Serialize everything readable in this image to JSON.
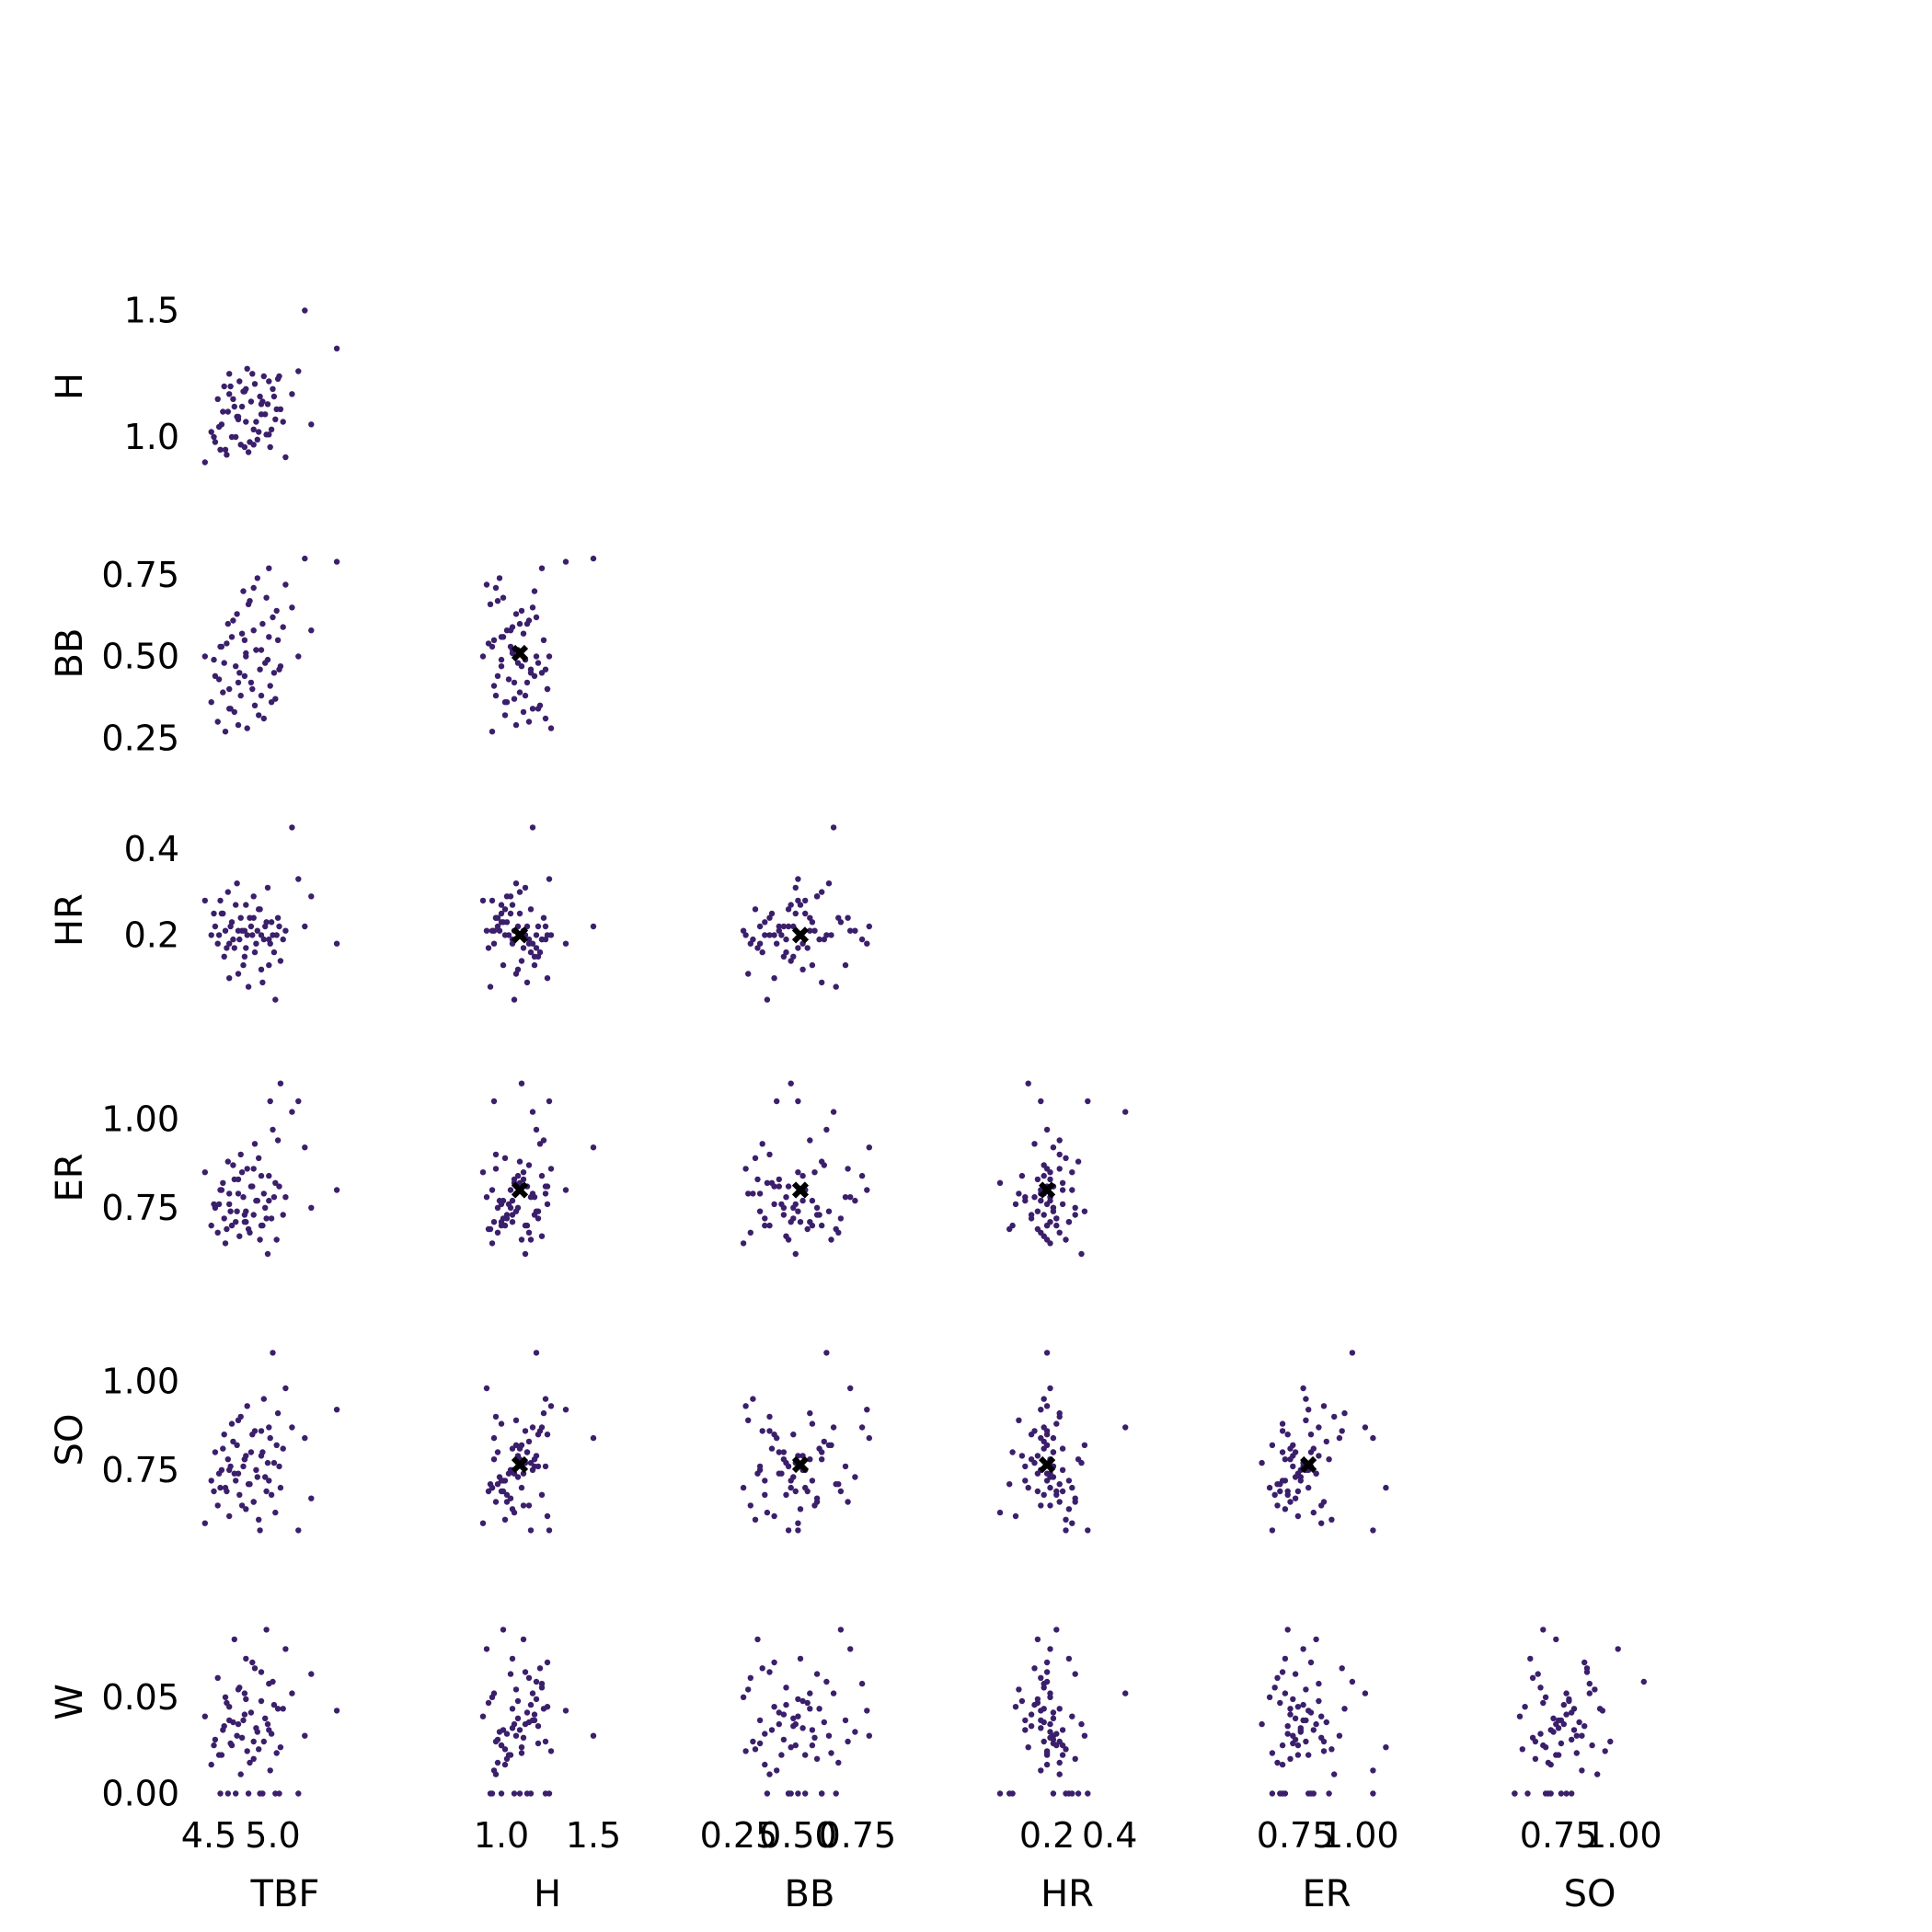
{
  "chart_data": {
    "type": "scatter",
    "subtype": "pairs-lower-triangle",
    "point_color": "#3b1f6b",
    "marker_color": "#000000",
    "grid": false,
    "variables": [
      "TBF",
      "H",
      "BB",
      "HR",
      "ER",
      "SO",
      "W"
    ],
    "axis_ranges": {
      "TBF": [
        4.45,
        5.6
      ],
      "H": [
        0.8,
        1.6
      ],
      "BB": [
        0.2,
        0.82
      ],
      "HR": [
        0.0,
        0.47
      ],
      "ER": [
        0.55,
        1.12
      ],
      "SO": [
        0.55,
        1.12
      ],
      "W": [
        -0.005,
        0.1
      ]
    },
    "ticks": {
      "TBF": [
        "4.5",
        "5.0"
      ],
      "H": [
        "1.0",
        "1.5"
      ],
      "BB": [
        "0.25",
        "0.50",
        "0.75"
      ],
      "HR": [
        "0.2",
        "0.4"
      ],
      "ER": [
        "0.75",
        "1.00"
      ],
      "SO": [
        "0.75",
        "1.00"
      ],
      "W": [
        "0.00",
        "0.05"
      ]
    },
    "reference_point": {
      "H": 1.1,
      "BB": 0.51,
      "HR": 0.2,
      "ER": 0.8,
      "SO": 0.765
    },
    "reference_panels": [
      [
        "H",
        "BB"
      ],
      [
        "H",
        "HR"
      ],
      [
        "BB",
        "HR"
      ],
      [
        "H",
        "ER"
      ],
      [
        "BB",
        "ER"
      ],
      [
        "HR",
        "ER"
      ],
      [
        "H",
        "SO"
      ],
      [
        "BB",
        "SO"
      ],
      [
        "HR",
        "SO"
      ],
      [
        "ER",
        "SO"
      ]
    ],
    "data": {
      "TBF": [
        4.47,
        4.52,
        4.55,
        4.57,
        4.6,
        4.62,
        4.63,
        4.65,
        4.66,
        4.68,
        4.7,
        4.72,
        4.74,
        4.75,
        4.77,
        4.79,
        4.8,
        4.81,
        4.83,
        4.85,
        4.86,
        4.88,
        4.9,
        4.91,
        4.93,
        4.95,
        4.96,
        4.98,
        5.0,
        5.02,
        5.04,
        5.06,
        5.1,
        5.15,
        5.2,
        5.25,
        5.3,
        5.5,
        4.58,
        4.61,
        4.64,
        4.67,
        4.69,
        4.71,
        4.73,
        4.76,
        4.78,
        4.82,
        4.84,
        4.87,
        4.89,
        4.92,
        4.94,
        4.97,
        4.99,
        5.01,
        5.03,
        4.59,
        4.73,
        4.79,
        4.85,
        4.91,
        4.97,
        5.05,
        5.08,
        4.54,
        4.66,
        4.78
      ],
      "H": [
        0.9,
        1.02,
        0.98,
        1.15,
        1.05,
        1.2,
        0.95,
        1.1,
        1.25,
        1.0,
        1.12,
        1.08,
        1.22,
        0.97,
        1.18,
        1.06,
        1.27,
        0.94,
        1.14,
        1.03,
        1.21,
        0.99,
        1.16,
        1.09,
        1.24,
        1.01,
        1.13,
        0.96,
        1.19,
        1.07,
        1.23,
        1.11,
        0.92,
        1.17,
        1.26,
        1.5,
        1.05,
        1.35,
        1.04,
        1.1,
        0.93,
        1.2,
        1.15,
        1.0,
        1.08,
        1.12,
        1.18,
        0.98,
        1.25,
        1.06,
        1.02,
        1.14,
        1.09,
        1.22,
        1.03,
        1.16,
        1.11,
        0.95,
        1.07,
        1.19,
        0.97,
        1.13,
        1.01,
        1.24,
        1.06,
        1.0,
        1.17,
        0.96
      ],
      "BB": [
        0.5,
        0.36,
        0.44,
        0.3,
        0.53,
        0.48,
        0.27,
        0.6,
        0.4,
        0.56,
        0.33,
        0.63,
        0.45,
        0.38,
        0.7,
        0.51,
        0.28,
        0.66,
        0.42,
        0.58,
        0.35,
        0.74,
        0.46,
        0.52,
        0.31,
        0.68,
        0.49,
        0.41,
        0.62,
        0.37,
        0.55,
        0.47,
        0.72,
        0.65,
        0.5,
        0.8,
        0.58,
        0.79,
        0.43,
        0.39,
        0.54,
        0.34,
        0.61,
        0.47,
        0.29,
        0.57,
        0.44,
        0.67,
        0.4,
        0.52,
        0.32,
        0.6,
        0.48,
        0.77,
        0.36,
        0.45,
        0.64,
        0.53,
        0.42,
        0.5,
        0.71,
        0.38,
        0.56,
        0.46,
        0.59,
        0.49,
        0.34,
        0.55
      ],
      "HR": [
        0.28,
        0.2,
        0.22,
        0.18,
        0.25,
        0.15,
        0.21,
        0.3,
        0.1,
        0.23,
        0.17,
        0.32,
        0.19,
        0.24,
        0.13,
        0.27,
        0.2,
        0.08,
        0.22,
        0.29,
        0.16,
        0.21,
        0.26,
        0.12,
        0.19,
        0.23,
        0.31,
        0.18,
        0.2,
        0.05,
        0.24,
        0.14,
        0.21,
        0.45,
        0.33,
        0.22,
        0.29,
        0.18,
        0.2,
        0.25,
        0.17,
        0.22,
        0.19,
        0.27,
        0.11,
        0.21,
        0.15,
        0.24,
        0.2,
        0.18,
        0.26,
        0.09,
        0.22,
        0.19,
        0.23,
        0.16,
        0.2,
        0.28,
        0.21,
        0.17,
        0.24,
        0.2,
        0.13,
        0.22,
        0.19,
        0.25,
        0.18,
        0.21
      ],
      "ER": [
        0.85,
        0.7,
        0.75,
        0.68,
        0.8,
        0.72,
        0.65,
        0.88,
        0.76,
        0.7,
        0.83,
        0.74,
        0.67,
        0.9,
        0.78,
        0.71,
        0.86,
        0.69,
        0.81,
        0.73,
        0.93,
        0.77,
        0.66,
        0.84,
        0.79,
        0.72,
        0.62,
        1.05,
        0.97,
        0.82,
        0.94,
        1.1,
        0.78,
        1.02,
        1.05,
        0.92,
        0.75,
        0.8,
        0.76,
        0.82,
        0.69,
        0.74,
        0.87,
        0.71,
        0.79,
        0.85,
        0.73,
        0.68,
        0.81,
        0.77,
        0.89,
        0.7,
        0.75,
        0.84,
        0.72,
        0.78,
        0.66,
        0.8,
        0.83,
        0.74,
        0.86,
        0.7,
        0.77,
        0.81,
        0.73,
        0.76,
        0.79,
        0.71
      ],
      "SO": [
        0.6,
        0.72,
        0.8,
        0.65,
        0.75,
        0.85,
        0.7,
        0.78,
        0.62,
        0.88,
        0.74,
        0.82,
        0.68,
        0.9,
        0.76,
        0.64,
        0.93,
        0.71,
        0.8,
        0.66,
        0.86,
        0.73,
        0.58,
        0.79,
        0.95,
        0.69,
        0.77,
        0.84,
        1.08,
        0.63,
        0.91,
        0.7,
        0.98,
        0.87,
        0.58,
        0.84,
        0.67,
        0.92,
        0.74,
        0.81,
        0.69,
        0.76,
        0.83,
        0.72,
        0.89,
        0.65,
        0.78,
        0.71,
        0.85,
        0.75,
        0.61,
        0.8,
        0.73,
        0.87,
        0.68,
        0.77,
        0.82,
        0.7,
        0.74,
        0.79,
        0.66,
        0.86,
        0.72,
        0.76,
        0.81,
        0.69,
        0.75,
        0.78
      ],
      "W": [
        0.04,
        0.015,
        0.028,
        0.06,
        0.02,
        0.035,
        0.05,
        0.0,
        0.045,
        0.025,
        0.08,
        0.03,
        0.055,
        0.01,
        0.038,
        0.07,
        0.022,
        0.0,
        0.042,
        0.018,
        0.065,
        0.032,
        0.0,
        0.048,
        0.027,
        0.085,
        0.036,
        0.012,
        0.058,
        0.0,
        0.044,
        0.024,
        0.075,
        0.052,
        0.0,
        0.03,
        0.062,
        0.043,
        0.02,
        0.033,
        0.047,
        0.026,
        0.037,
        0.0,
        0.054,
        0.029,
        0.041,
        0.016,
        0.068,
        0.034,
        0.023,
        0.0,
        0.039,
        0.057,
        0.031,
        0.046,
        0.021,
        0.0,
        0.036,
        0.049,
        0.027,
        0.063,
        0.033,
        0.0,
        0.044,
        0.025,
        0.038,
        0.052
      ]
    }
  }
}
